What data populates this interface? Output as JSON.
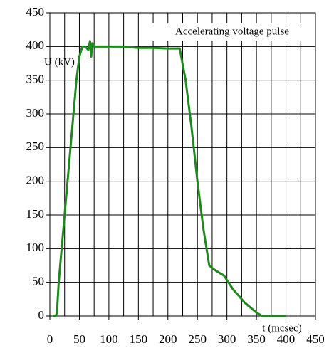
{
  "chart_data": {
    "type": "line",
    "legend_text": "Accelerating voltage pulse",
    "y_label": "U (kV)",
    "x_label": "t (mcsec)",
    "x": [
      5,
      10,
      12,
      15,
      20,
      25,
      30,
      35,
      40,
      45,
      50,
      55,
      60,
      65,
      68,
      70,
      72,
      75,
      100,
      125,
      150,
      175,
      200,
      220,
      230,
      240,
      250,
      260,
      270,
      280,
      295,
      310,
      330,
      350,
      360,
      400
    ],
    "series": [
      {
        "name": "Accelerating voltage pulse",
        "color": "#1e8a1e",
        "values": [
          0,
          0,
          5,
          50,
          100,
          150,
          200,
          250,
          300,
          350,
          385,
          400,
          400,
          395,
          408,
          385,
          405,
          400,
          400,
          400,
          398,
          398,
          397,
          397,
          350,
          280,
          200,
          130,
          75,
          68,
          60,
          40,
          20,
          5,
          0,
          0
        ]
      }
    ],
    "xlim": [
      0,
      450
    ],
    "xticks": [
      0,
      50,
      100,
      150,
      200,
      250,
      300,
      350,
      400,
      450
    ],
    "x_minor_grid": 25,
    "ylim": [
      0,
      450
    ],
    "yticks": [
      0,
      50,
      100,
      150,
      200,
      250,
      300,
      350,
      400,
      450
    ],
    "grid": true
  }
}
